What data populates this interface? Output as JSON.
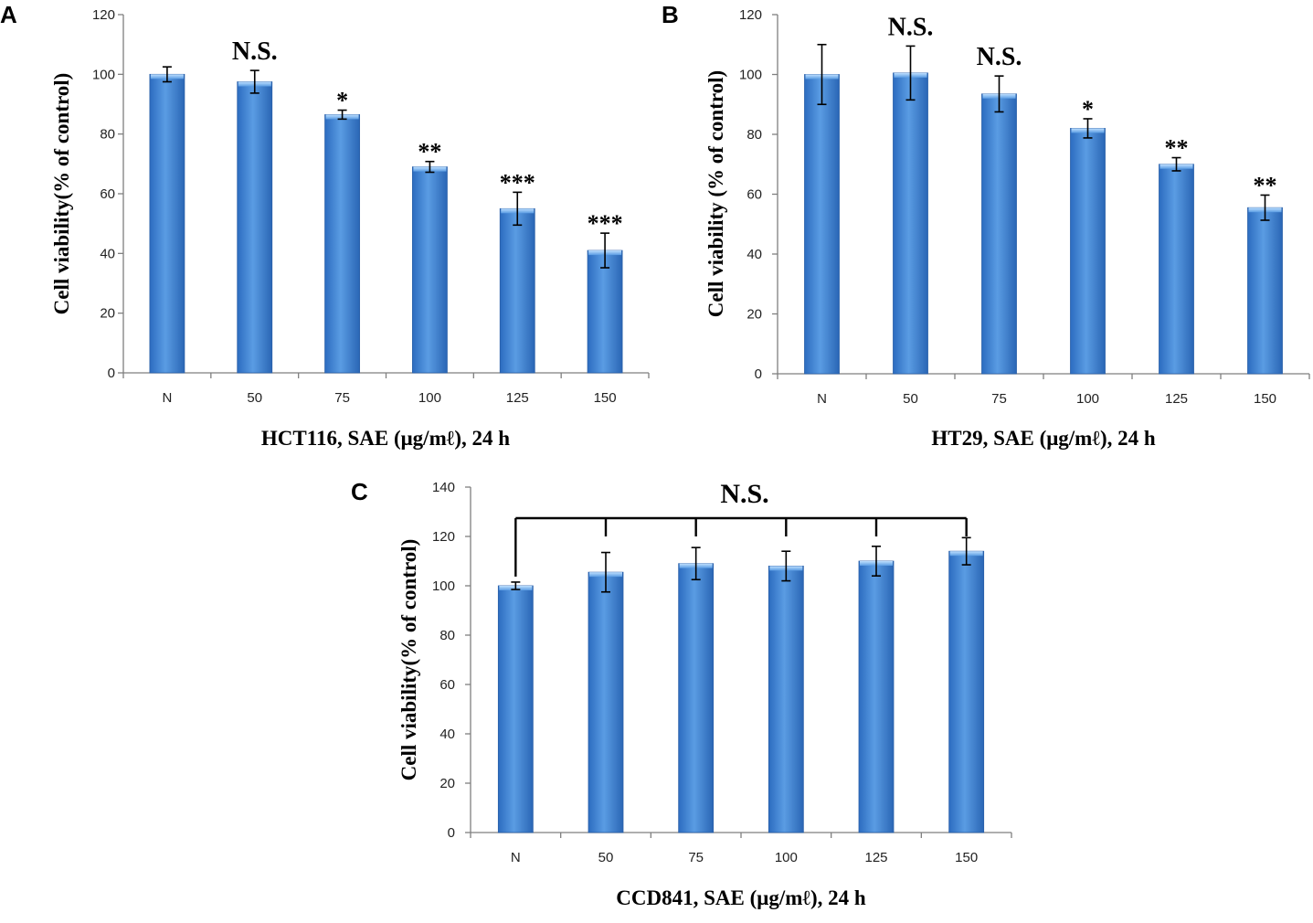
{
  "chart_data": [
    {
      "type": "bar",
      "panel": "A",
      "categories": [
        "N",
        "50",
        "75",
        "100",
        "125",
        "150"
      ],
      "values": [
        100,
        97.5,
        86.5,
        69,
        55,
        41
      ],
      "errors": [
        2.5,
        3.8,
        1.5,
        1.8,
        5.5,
        5.8
      ],
      "annotations": [
        "",
        "N.S.",
        "*",
        "**",
        "***",
        "***"
      ],
      "ylabel": "Cell viability(% of control)",
      "xlabel": "HCT116, SAE (μg/mℓ), 24 h",
      "ylim": [
        0,
        120
      ],
      "yticks": [
        0,
        20,
        40,
        60,
        80,
        100,
        120
      ],
      "bar_color": "#4f8fd6"
    },
    {
      "type": "bar",
      "panel": "B",
      "categories": [
        "N",
        "50",
        "75",
        "100",
        "125",
        "150"
      ],
      "values": [
        100,
        100.5,
        93.5,
        82,
        70,
        55.5
      ],
      "errors": [
        10,
        9,
        6,
        3.2,
        2.2,
        4.2
      ],
      "annotations": [
        "",
        "N.S.",
        "N.S.",
        "*",
        "**",
        "**"
      ],
      "ylabel": "Cell viability (% of control)",
      "xlabel": "HT29, SAE (μg/mℓ), 24 h",
      "ylim": [
        0,
        120
      ],
      "yticks": [
        0,
        20,
        40,
        60,
        80,
        100,
        120
      ],
      "bar_color": "#4f8fd6"
    },
    {
      "type": "bar",
      "panel": "C",
      "categories": [
        "N",
        "50",
        "75",
        "100",
        "125",
        "150"
      ],
      "values": [
        100,
        105.5,
        109,
        108,
        110,
        114
      ],
      "errors": [
        1.5,
        8,
        6.5,
        6,
        6,
        5.5
      ],
      "annotations": [
        "",
        "",
        "",
        "",
        "",
        ""
      ],
      "bracket_label": "N.S.",
      "ylabel": "Cell viability(% of control)",
      "xlabel": "CCD841, SAE (μg/mℓ), 24 h",
      "ylim": [
        0,
        140
      ],
      "yticks": [
        0,
        20,
        40,
        60,
        80,
        100,
        120,
        140
      ],
      "bar_color": "#4f8fd6"
    }
  ]
}
